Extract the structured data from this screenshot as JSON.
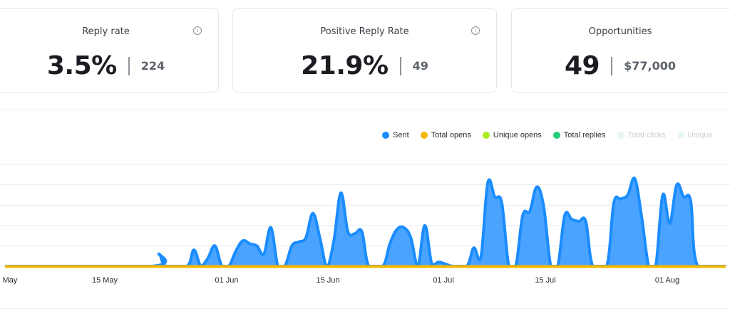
{
  "cards": [
    {
      "title": "Reply rate",
      "value": "3.5%",
      "secondary": "224",
      "info": true
    },
    {
      "title": "Positive Reply Rate",
      "value": "21.9%",
      "secondary": "49",
      "info": true
    },
    {
      "title": "Opportunities",
      "value": "49",
      "secondary": "$77,000",
      "info": false
    }
  ],
  "chart_data": {
    "type": "area",
    "title": "",
    "xlabel": "",
    "ylabel": "",
    "grid": true,
    "legend_position": "top-right",
    "x_ticks": [
      "May",
      "15 May",
      "01 Jun",
      "15 Jun",
      "01 Jul",
      "15 Jul",
      "01 Aug"
    ],
    "x_range": [
      "2024-05-01",
      "2024-08-12"
    ],
    "y_range": [
      0,
      100
    ],
    "series": [
      {
        "name": "Sent",
        "color": "#1a8cff",
        "fill": "#4aa3ff",
        "values": [
          [
            "2024-05-01",
            0
          ],
          [
            "2024-05-22",
            0
          ],
          [
            "2024-05-23",
            12
          ],
          [
            "2024-05-24",
            0
          ],
          [
            "2024-05-27",
            0
          ],
          [
            "2024-05-28",
            16
          ],
          [
            "2024-05-29",
            0
          ],
          [
            "2024-05-30",
            8
          ],
          [
            "2024-05-31",
            20
          ],
          [
            "2024-06-01",
            0
          ],
          [
            "2024-06-02",
            0
          ],
          [
            "2024-06-03",
            15
          ],
          [
            "2024-06-04",
            25
          ],
          [
            "2024-06-05",
            22
          ],
          [
            "2024-06-06",
            20
          ],
          [
            "2024-06-07",
            12
          ],
          [
            "2024-06-08",
            38
          ],
          [
            "2024-06-09",
            0
          ],
          [
            "2024-06-10",
            0
          ],
          [
            "2024-06-11",
            20
          ],
          [
            "2024-06-12",
            24
          ],
          [
            "2024-06-13",
            28
          ],
          [
            "2024-06-14",
            52
          ],
          [
            "2024-06-15",
            28
          ],
          [
            "2024-06-16",
            0
          ],
          [
            "2024-06-17",
            25
          ],
          [
            "2024-06-18",
            72
          ],
          [
            "2024-06-19",
            34
          ],
          [
            "2024-06-20",
            32
          ],
          [
            "2024-06-21",
            34
          ],
          [
            "2024-06-22",
            0
          ],
          [
            "2024-06-24",
            0
          ],
          [
            "2024-06-25",
            22
          ],
          [
            "2024-06-26",
            36
          ],
          [
            "2024-06-27",
            38
          ],
          [
            "2024-06-28",
            28
          ],
          [
            "2024-06-29",
            0
          ],
          [
            "2024-06-30",
            40
          ],
          [
            "2024-07-01",
            2
          ],
          [
            "2024-07-02",
            4
          ],
          [
            "2024-07-03",
            2
          ],
          [
            "2024-07-04",
            0
          ],
          [
            "2024-07-06",
            0
          ],
          [
            "2024-07-07",
            18
          ],
          [
            "2024-07-08",
            8
          ],
          [
            "2024-07-09",
            82
          ],
          [
            "2024-07-10",
            68
          ],
          [
            "2024-07-11",
            62
          ],
          [
            "2024-07-12",
            0
          ],
          [
            "2024-07-13",
            0
          ],
          [
            "2024-07-14",
            50
          ],
          [
            "2024-07-15",
            54
          ],
          [
            "2024-07-16",
            78
          ],
          [
            "2024-07-17",
            58
          ],
          [
            "2024-07-18",
            0
          ],
          [
            "2024-07-19",
            0
          ],
          [
            "2024-07-20",
            50
          ],
          [
            "2024-07-21",
            46
          ],
          [
            "2024-07-22",
            44
          ],
          [
            "2024-07-23",
            44
          ],
          [
            "2024-07-24",
            0
          ],
          [
            "2024-07-26",
            0
          ],
          [
            "2024-07-27",
            62
          ],
          [
            "2024-07-28",
            66
          ],
          [
            "2024-07-29",
            70
          ],
          [
            "2024-07-30",
            86
          ],
          [
            "2024-07-31",
            48
          ],
          [
            "2024-08-01",
            0
          ],
          [
            "2024-08-02",
            0
          ],
          [
            "2024-08-03",
            70
          ],
          [
            "2024-08-04",
            42
          ],
          [
            "2024-08-05",
            80
          ],
          [
            "2024-08-06",
            68
          ],
          [
            "2024-08-07",
            64
          ],
          [
            "2024-08-08",
            0
          ],
          [
            "2024-08-12",
            0
          ]
        ]
      },
      {
        "name": "Total opens",
        "color": "#f5b800",
        "values": [
          [
            "2024-05-01",
            0
          ],
          [
            "2024-08-12",
            0
          ]
        ]
      },
      {
        "name": "Unique opens",
        "color": "#aaee22",
        "values": [
          [
            "2024-05-01",
            0
          ],
          [
            "2024-08-12",
            0
          ]
        ]
      },
      {
        "name": "Total replies",
        "color": "#22cc77",
        "values": [
          [
            "2024-05-01",
            0
          ],
          [
            "2024-08-12",
            0
          ]
        ]
      },
      {
        "name": "Total clicks",
        "color": "#e8f6f0",
        "values": []
      },
      {
        "name": "Unique",
        "color": "#e8f6f6",
        "values": []
      }
    ]
  }
}
